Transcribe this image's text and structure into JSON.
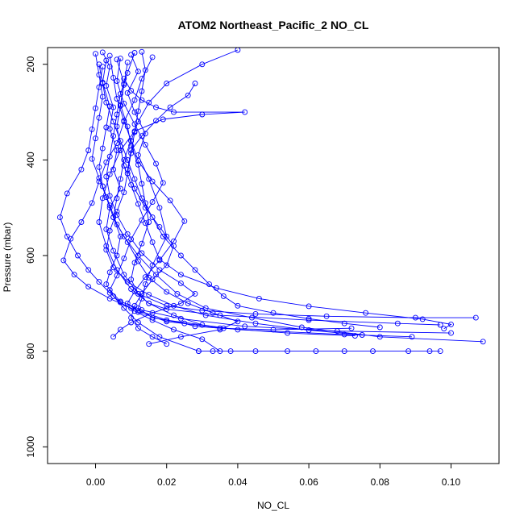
{
  "chart_data": {
    "type": "line",
    "title": "ATOM2 Northeast_Pacific_2 NO_CL",
    "xlabel": "NO_CL",
    "ylabel": "Pressure (mbar)",
    "xlim": [
      -0.0135,
      0.1135
    ],
    "ylim": [
      1035,
      165
    ],
    "y_reversed": true,
    "x_ticks": [
      0.0,
      0.02,
      0.04,
      0.06,
      0.08,
      0.1
    ],
    "x_tick_labels": [
      "0.00",
      "0.02",
      "0.04",
      "0.06",
      "0.08",
      "0.10"
    ],
    "y_ticks": [
      200,
      400,
      600,
      800,
      1000
    ],
    "y_tick_labels": [
      "200",
      "400",
      "600",
      "800",
      "1000"
    ],
    "marker": "open-circle",
    "color": "#0000ff",
    "grid": false,
    "legend": false,
    "series": [
      {
        "x": [
          0.01,
          0.012,
          0.009,
          0.011,
          0.014,
          0.012,
          0.015,
          0.018,
          0.02,
          0.016,
          0.014,
          0.013,
          0.012,
          0.016,
          0.025,
          0.028,
          0.035,
          0.05,
          0.072
        ],
        "y": [
          180,
          215,
          260,
          300,
          345,
          390,
          440,
          500,
          560,
          620,
          660,
          690,
          710,
          730,
          742,
          748,
          752,
          755,
          752
        ]
      },
      {
        "x": [
          0.002,
          0.004,
          0.003,
          0.005,
          0.004,
          0.006,
          0.005,
          0.007,
          0.004,
          0.003,
          0.005,
          0.008,
          0.012,
          0.02,
          0.03,
          0.045,
          0.065,
          0.09,
          0.107
        ],
        "y": [
          175,
          205,
          245,
          290,
          335,
          380,
          420,
          460,
          500,
          545,
          590,
          640,
          680,
          705,
          715,
          722,
          727,
          730,
          730
        ]
      },
      {
        "x": [
          0.016,
          0.013,
          0.011,
          0.008,
          0.006,
          0.003,
          0.001,
          -0.001,
          -0.004,
          -0.007,
          -0.009,
          -0.006,
          -0.002,
          0.004,
          0.01,
          0.02,
          0.04,
          0.07,
          0.089
        ],
        "y": [
          185,
          230,
          275,
          320,
          365,
          405,
          445,
          490,
          530,
          565,
          610,
          640,
          665,
          690,
          710,
          735,
          755,
          765,
          770
        ]
      },
      {
        "x": [
          0.006,
          0.008,
          0.007,
          0.009,
          0.01,
          0.012,
          0.013,
          0.014,
          0.015,
          0.013,
          0.011,
          0.01,
          0.012,
          0.015,
          0.02,
          0.035,
          0.06,
          0.085,
          0.097
        ],
        "y": [
          190,
          240,
          285,
          330,
          370,
          410,
          450,
          490,
          530,
          575,
          615,
          650,
          680,
          700,
          712,
          725,
          735,
          742,
          745
        ]
      },
      {
        "x": [
          0.0,
          0.001,
          0.002,
          0.001,
          0.0,
          -0.001,
          0.001,
          0.003,
          0.005,
          0.007,
          0.006,
          0.004,
          0.003,
          0.005,
          0.008,
          0.012,
          0.018,
          0.029
        ],
        "y": [
          178,
          222,
          268,
          312,
          355,
          398,
          438,
          478,
          520,
          560,
          600,
          635,
          660,
          685,
          710,
          740,
          770,
          800
        ]
      },
      {
        "x": [
          0.004,
          0.005,
          0.006,
          0.008,
          0.01,
          0.012,
          0.016,
          0.021,
          0.025,
          0.022,
          0.018,
          0.014,
          0.011,
          0.009,
          0.012,
          0.02,
          0.036,
          0.054,
          0.073
        ],
        "y": [
          182,
          228,
          272,
          318,
          360,
          402,
          445,
          485,
          528,
          570,
          610,
          645,
          675,
          700,
          718,
          738,
          752,
          762,
          768
        ]
      },
      {
        "x": [
          0.011,
          0.009,
          0.007,
          0.006,
          0.005,
          0.004,
          0.003,
          0.004,
          0.006,
          0.009,
          0.013,
          0.018,
          0.024,
          0.028,
          0.024,
          0.016,
          0.01,
          0.007,
          0.005
        ],
        "y": [
          176,
          218,
          262,
          305,
          350,
          393,
          435,
          475,
          515,
          555,
          595,
          630,
          658,
          680,
          700,
          720,
          740,
          755,
          770
        ]
      },
      {
        "x": [
          0.007,
          0.006,
          0.008,
          0.011,
          0.014,
          0.017,
          0.019,
          0.016,
          0.013,
          0.01,
          0.008,
          0.006,
          0.004,
          0.007,
          0.013,
          0.024,
          0.042,
          0.068,
          0.1
        ],
        "y": [
          188,
          235,
          282,
          325,
          368,
          408,
          448,
          488,
          526,
          566,
          606,
          642,
          672,
          696,
          714,
          732,
          748,
          758,
          762
        ]
      },
      {
        "x": [
          0.04,
          0.03,
          0.02,
          0.015,
          0.012,
          0.01,
          0.008,
          0.007,
          0.006,
          0.005,
          0.008,
          0.012,
          0.017,
          0.023,
          0.031,
          0.044,
          0.058,
          0.08,
          0.109
        ],
        "y": [
          170,
          200,
          240,
          280,
          320,
          360,
          400,
          440,
          480,
          520,
          560,
          600,
          640,
          680,
          710,
          730,
          750,
          770,
          780
        ]
      },
      {
        "x": [
          0.003,
          0.002,
          0.004,
          0.003,
          0.002,
          0.001,
          0.002,
          0.004,
          0.006,
          0.009,
          0.012,
          0.015,
          0.02,
          0.026,
          0.033,
          0.04,
          0.035,
          0.024,
          0.015
        ],
        "y": [
          192,
          238,
          288,
          332,
          376,
          415,
          455,
          495,
          535,
          572,
          612,
          646,
          676,
          700,
          720,
          738,
          755,
          770,
          785
        ]
      },
      {
        "x": [
          0.013,
          0.014,
          0.013,
          0.012,
          0.011,
          0.01,
          0.009,
          0.008,
          0.006,
          0.004,
          0.003,
          0.005,
          0.009,
          0.015,
          0.022,
          0.031,
          0.045,
          0.06,
          0.075
        ],
        "y": [
          174,
          212,
          256,
          298,
          342,
          386,
          428,
          468,
          508,
          548,
          588,
          625,
          655,
          682,
          705,
          725,
          742,
          756,
          766
        ]
      },
      {
        "x": [
          0.028,
          0.026,
          0.021,
          0.017,
          0.013,
          0.01,
          0.009,
          0.011,
          0.014,
          0.018,
          0.022,
          0.02,
          0.016,
          0.013,
          0.011,
          0.01,
          0.012,
          0.016,
          0.02
        ],
        "y": [
          240,
          265,
          290,
          318,
          350,
          380,
          420,
          460,
          500,
          540,
          580,
          620,
          650,
          680,
          705,
          730,
          752,
          770,
          785
        ]
      },
      {
        "x": [
          0.008,
          0.01,
          0.013,
          0.017,
          0.022,
          0.042,
          0.03,
          0.019,
          0.011,
          0.007,
          0.004,
          0.002,
          0.001,
          0.003,
          0.006,
          0.01,
          0.015,
          0.022,
          0.03
        ],
        "y": [
          230,
          255,
          275,
          290,
          300,
          300,
          305,
          315,
          340,
          380,
          430,
          480,
          530,
          580,
          630,
          670,
          700,
          725,
          745
        ]
      },
      {
        "x": [
          0.001,
          0.002,
          0.003,
          0.005,
          0.007,
          0.009,
          0.011,
          0.013,
          0.016,
          0.019,
          0.024,
          0.028,
          0.032,
          0.036,
          0.04,
          0.05,
          0.06,
          0.07,
          0.08
        ],
        "y": [
          200,
          240,
          280,
          320,
          360,
          400,
          440,
          480,
          520,
          560,
          600,
          630,
          660,
          685,
          705,
          720,
          732,
          742,
          750
        ]
      },
      {
        "x": [
          0.002,
          0.001,
          0.0,
          -0.001,
          -0.002,
          -0.004,
          -0.008,
          -0.01,
          -0.008,
          -0.005,
          -0.002,
          0.001,
          0.004,
          0.007,
          0.011,
          0.016,
          0.022,
          0.03,
          0.035
        ],
        "y": [
          205,
          248,
          292,
          336,
          380,
          420,
          470,
          520,
          560,
          600,
          630,
          655,
          678,
          698,
          716,
          735,
          755,
          775,
          800
        ]
      },
      {
        "x": [
          0.009,
          0.008,
          0.007,
          0.006,
          0.007,
          0.008,
          0.01,
          0.012,
          0.014,
          0.016,
          0.018,
          0.024,
          0.034,
          0.046,
          0.06,
          0.076,
          0.092,
          0.1,
          0.098
        ],
        "y": [
          196,
          243,
          287,
          330,
          372,
          412,
          452,
          492,
          532,
          572,
          608,
          640,
          668,
          690,
          706,
          720,
          733,
          744,
          753
        ]
      },
      {
        "x": [
          0.029,
          0.033,
          0.038,
          0.045,
          0.054,
          0.062,
          0.07,
          0.078,
          0.088,
          0.094,
          0.097
        ],
        "y": [
          800,
          800,
          800,
          800,
          800,
          800,
          800,
          800,
          800,
          800,
          800
        ]
      }
    ]
  }
}
